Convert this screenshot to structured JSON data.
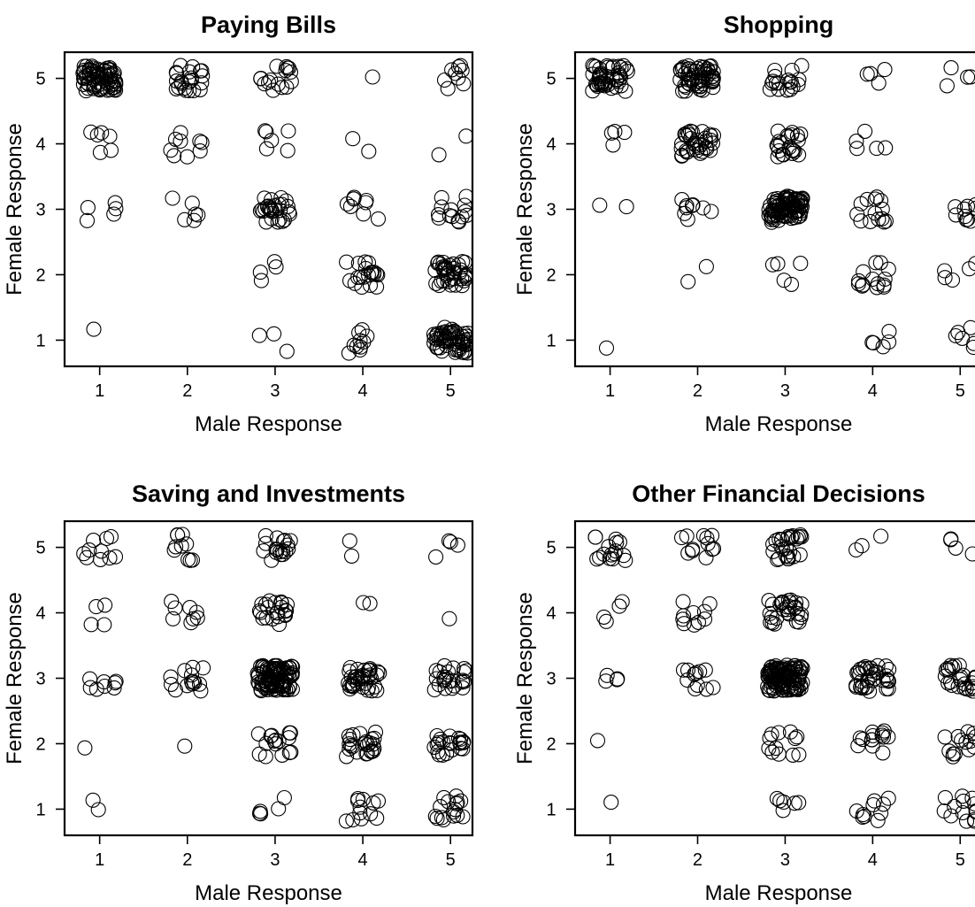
{
  "chart_data": [
    {
      "type": "scatter",
      "title": "Paying Bills",
      "xlabel": "Male Response",
      "ylabel": "Female Response",
      "xlim": [
        0.6,
        5.25
      ],
      "ylim": [
        0.6,
        5.4
      ],
      "xticks": [
        1,
        2,
        3,
        4,
        5
      ],
      "yticks": [
        1,
        2,
        3,
        4,
        5
      ],
      "grid": false,
      "counts": [
        [
          1,
          1,
          1
        ],
        [
          1,
          3,
          5
        ],
        [
          1,
          4,
          6
        ],
        [
          1,
          5,
          70
        ],
        [
          2,
          3,
          6
        ],
        [
          2,
          4,
          9
        ],
        [
          2,
          5,
          22
        ],
        [
          3,
          1,
          3
        ],
        [
          3,
          2,
          4
        ],
        [
          3,
          3,
          28
        ],
        [
          3,
          4,
          6
        ],
        [
          3,
          5,
          16
        ],
        [
          4,
          1,
          10
        ],
        [
          4,
          2,
          20
        ],
        [
          4,
          3,
          9
        ],
        [
          4,
          4,
          2
        ],
        [
          4,
          5,
          1
        ],
        [
          5,
          1,
          60
        ],
        [
          5,
          2,
          40
        ],
        [
          5,
          3,
          14
        ],
        [
          5,
          4,
          2
        ],
        [
          5,
          5,
          9
        ]
      ]
    },
    {
      "type": "scatter",
      "title": "Shopping",
      "xlabel": "Male Response",
      "ylabel": "Female Response",
      "xlim": [
        0.6,
        5.25
      ],
      "ylim": [
        0.6,
        5.4
      ],
      "xticks": [
        1,
        2,
        3,
        4,
        5
      ],
      "yticks": [
        1,
        2,
        3,
        4,
        5
      ],
      "grid": false,
      "counts": [
        [
          1,
          1,
          1
        ],
        [
          1,
          3,
          2
        ],
        [
          1,
          4,
          4
        ],
        [
          1,
          5,
          45
        ],
        [
          2,
          2,
          2
        ],
        [
          2,
          3,
          9
        ],
        [
          2,
          4,
          35
        ],
        [
          2,
          5,
          60
        ],
        [
          3,
          2,
          5
        ],
        [
          3,
          3,
          90
        ],
        [
          3,
          4,
          22
        ],
        [
          3,
          5,
          18
        ],
        [
          4,
          1,
          5
        ],
        [
          4,
          2,
          14
        ],
        [
          4,
          3,
          14
        ],
        [
          4,
          4,
          5
        ],
        [
          4,
          5,
          4
        ],
        [
          5,
          1,
          6
        ],
        [
          5,
          2,
          5
        ],
        [
          5,
          3,
          10
        ],
        [
          5,
          5,
          4
        ]
      ]
    },
    {
      "type": "scatter",
      "title": "Saving and Investments",
      "xlabel": "Male Response",
      "ylabel": "Female Response",
      "xlim": [
        0.6,
        5.25
      ],
      "ylim": [
        0.6,
        5.4
      ],
      "xticks": [
        1,
        2,
        3,
        4,
        5
      ],
      "yticks": [
        1,
        2,
        3,
        4,
        5
      ],
      "grid": false,
      "counts": [
        [
          1,
          1,
          2
        ],
        [
          1,
          2,
          1
        ],
        [
          1,
          3,
          8
        ],
        [
          1,
          4,
          4
        ],
        [
          1,
          5,
          10
        ],
        [
          2,
          2,
          1
        ],
        [
          2,
          3,
          14
        ],
        [
          2,
          4,
          8
        ],
        [
          2,
          5,
          10
        ],
        [
          3,
          1,
          5
        ],
        [
          3,
          2,
          16
        ],
        [
          3,
          3,
          100
        ],
        [
          3,
          4,
          22
        ],
        [
          3,
          5,
          18
        ],
        [
          4,
          1,
          12
        ],
        [
          4,
          2,
          24
        ],
        [
          4,
          3,
          38
        ],
        [
          4,
          4,
          2
        ],
        [
          4,
          5,
          2
        ],
        [
          5,
          1,
          16
        ],
        [
          5,
          2,
          22
        ],
        [
          5,
          3,
          24
        ],
        [
          5,
          4,
          1
        ],
        [
          5,
          5,
          4
        ]
      ]
    },
    {
      "type": "scatter",
      "title": "Other Financial Decisions",
      "xlabel": "Male Response",
      "ylabel": "Female Response",
      "xlim": [
        0.6,
        5.25
      ],
      "ylim": [
        0.6,
        5.4
      ],
      "xticks": [
        1,
        2,
        3,
        4,
        5
      ],
      "yticks": [
        1,
        2,
        3,
        4,
        5
      ],
      "grid": false,
      "counts": [
        [
          1,
          1,
          1
        ],
        [
          1,
          2,
          1
        ],
        [
          1,
          3,
          4
        ],
        [
          1,
          4,
          4
        ],
        [
          1,
          5,
          16
        ],
        [
          2,
          3,
          12
        ],
        [
          2,
          4,
          10
        ],
        [
          2,
          5,
          12
        ],
        [
          3,
          1,
          6
        ],
        [
          3,
          2,
          12
        ],
        [
          3,
          3,
          110
        ],
        [
          3,
          4,
          30
        ],
        [
          3,
          5,
          28
        ],
        [
          4,
          1,
          10
        ],
        [
          4,
          2,
          14
        ],
        [
          4,
          3,
          38
        ],
        [
          4,
          5,
          3
        ],
        [
          5,
          1,
          14
        ],
        [
          5,
          2,
          14
        ],
        [
          5,
          3,
          26
        ],
        [
          5,
          5,
          4
        ]
      ]
    }
  ]
}
